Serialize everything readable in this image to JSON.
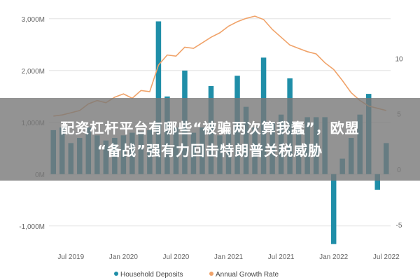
{
  "chart_data": {
    "type": "bar+line",
    "title": "",
    "left_axis": {
      "ticks": [
        "3,000M",
        "2,000M",
        "1,000M",
        "0M",
        "-1,000M"
      ],
      "tick_values": [
        3000,
        2000,
        1000,
        0,
        -1000
      ],
      "range": [
        -1300,
        3200
      ]
    },
    "right_axis": {
      "ticks": [
        "10",
        "5",
        "0",
        "-5"
      ],
      "tick_values": [
        10,
        5,
        0,
        -5
      ],
      "range": [
        -6.5,
        14.5
      ]
    },
    "x_ticks": [
      "Jul 2019",
      "Jan 2020",
      "Jul 2020",
      "Jan 2021",
      "Jul 2021",
      "Jan 2022",
      "Jul 2022"
    ],
    "series": [
      {
        "name": "Household Deposits",
        "type": "bar",
        "axis": "left",
        "color": "#1f8ea8",
        "values": [
          850,
          900,
          600,
          700,
          900,
          750,
          650,
          700,
          750,
          800,
          820,
          850,
          2950,
          1500,
          900,
          2000,
          800,
          900,
          1700,
          750,
          850,
          1900,
          1300,
          900,
          2250,
          1000,
          1150,
          1850,
          1000,
          1100,
          1100,
          1100,
          -1350,
          300,
          700,
          1150,
          1550,
          -300,
          600
        ]
      },
      {
        "name": "Annual Growth Rate",
        "type": "line",
        "axis": "right",
        "color": "#f0a36a",
        "values": [
          4.8,
          4.9,
          5.1,
          5.3,
          5.9,
          6.2,
          6.0,
          6.5,
          6.8,
          6.4,
          7.1,
          7.0,
          9.4,
          10.3,
          10.2,
          11.0,
          10.9,
          11.4,
          11.9,
          12.3,
          12.9,
          13.3,
          13.6,
          13.8,
          13.5,
          12.6,
          11.9,
          11.2,
          10.9,
          10.6,
          10.4,
          9.6,
          9.0,
          8.0,
          6.9,
          6.2,
          5.7,
          5.5,
          5.3
        ]
      }
    ],
    "legend": {
      "position": "bottom",
      "entries": [
        "Household Deposits",
        "Annual Growth Rate"
      ]
    }
  },
  "banner": {
    "line1": "配资杠杆平台有哪些“被骗两次算我蠢”，欧盟",
    "line2": "“备战”强有力回击特朗普关税威胁"
  }
}
